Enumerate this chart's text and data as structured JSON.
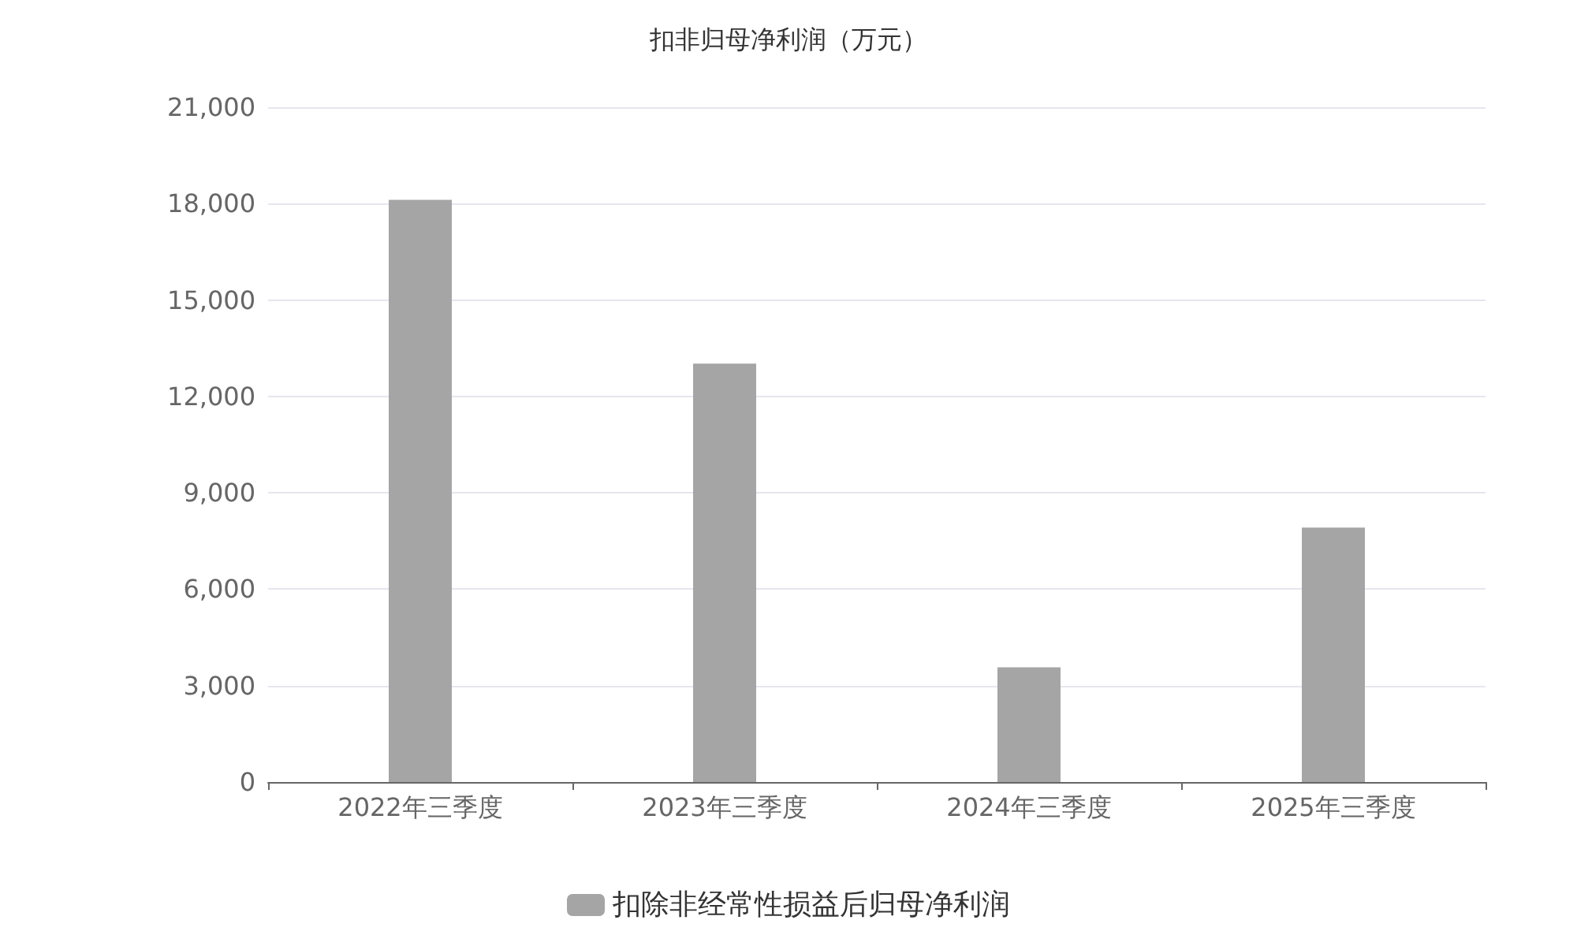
{
  "chart_data": {
    "type": "bar",
    "title": "扣非归母净利润（万元）",
    "categories": [
      "2022年三季度",
      "2023年三季度",
      "2024年三季度",
      "2025年三季度"
    ],
    "series": [
      {
        "name": "扣除非经常性损益后归母净利润",
        "color": "#a5a5a5",
        "values": [
          18120,
          13020,
          3570,
          7920
        ]
      }
    ],
    "ylim": [
      0,
      21000
    ],
    "yticks": [
      0,
      {
        "value": 3000,
        "label": "3,000"
      },
      {
        "value": 6000,
        "label": "6,000"
      },
      {
        "value": 9000,
        "label": "9,000"
      },
      {
        "value": 12000,
        "label": "12,000"
      },
      {
        "value": 15000,
        "label": "15,000"
      },
      {
        "value": 18000,
        "label": "18,000"
      },
      {
        "value": 21000,
        "label": "21,000"
      }
    ],
    "grid": "y",
    "legend": "bottom"
  }
}
